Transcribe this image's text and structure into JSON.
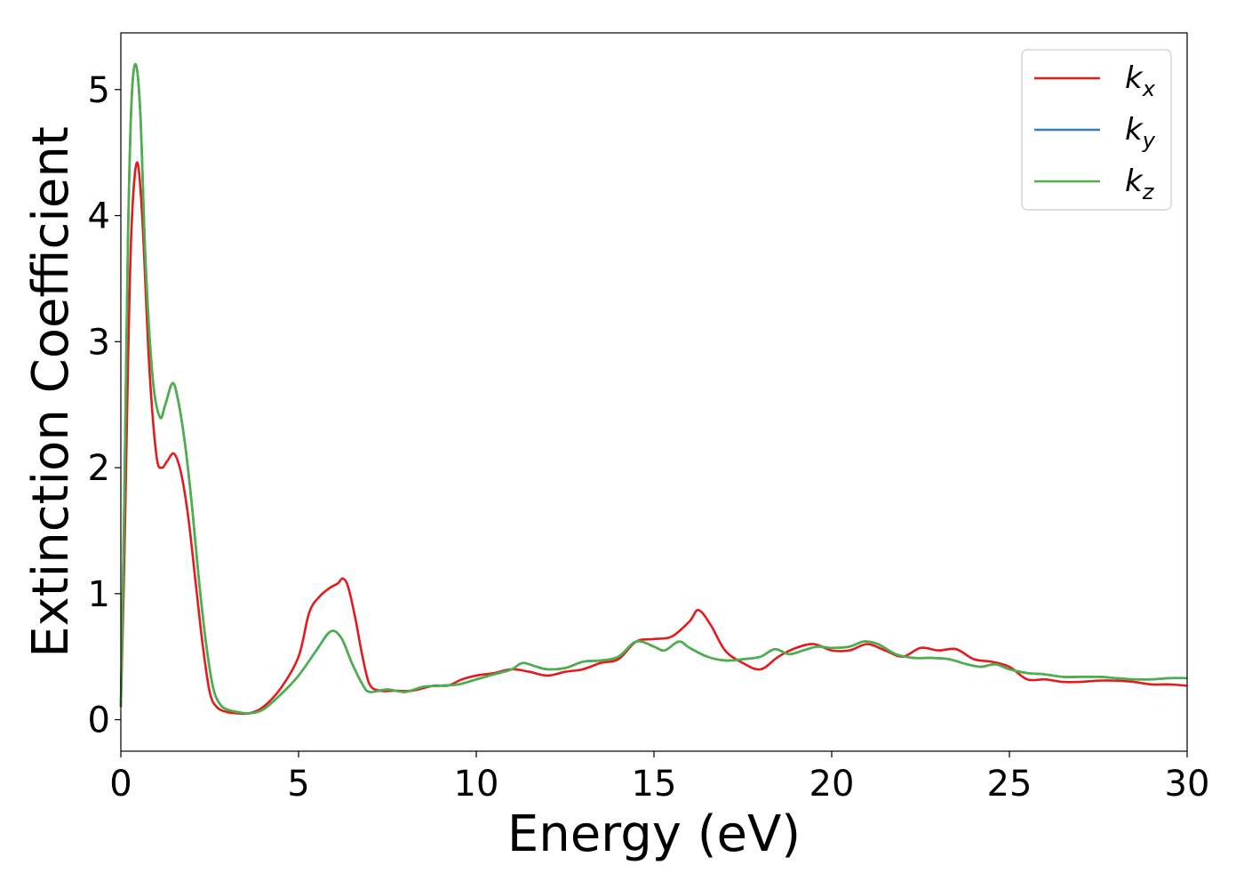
{
  "chart_data": {
    "type": "line",
    "title": "",
    "xlabel": "Energy (eV)",
    "ylabel": "Extinction Coefficient",
    "xlim": [
      0,
      30
    ],
    "ylim": [
      -0.25,
      5.45
    ],
    "xticks": [
      "0",
      "5",
      "10",
      "15",
      "20",
      "25",
      "30"
    ],
    "yticks": [
      "0",
      "1",
      "2",
      "3",
      "4",
      "5"
    ],
    "grid": false,
    "legend_position": "top-right",
    "series": [
      {
        "name": "k_x",
        "label_base": "k",
        "label_sub": "x",
        "color": "#e41a1c",
        "x": [
          0,
          0.1,
          0.2,
          0.3,
          0.45,
          0.6,
          0.8,
          1.0,
          1.15,
          1.3,
          1.5,
          1.7,
          1.9,
          2.1,
          2.3,
          2.5,
          2.7,
          3.0,
          3.3,
          3.6,
          4.0,
          4.5,
          5.0,
          5.3,
          5.6,
          5.9,
          6.1,
          6.25,
          6.4,
          6.6,
          6.8,
          7.0,
          7.3,
          7.7,
          8.2,
          8.8,
          9.2,
          9.6,
          10.0,
          10.5,
          11.0,
          11.5,
          12.0,
          12.5,
          13.0,
          13.5,
          14.0,
          14.5,
          15.0,
          15.5,
          16.0,
          16.25,
          16.6,
          17.0,
          17.5,
          18.0,
          18.5,
          19.0,
          19.5,
          20.0,
          20.5,
          21.0,
          21.5,
          22.0,
          22.5,
          23.0,
          23.5,
          24.0,
          24.5,
          25.0,
          25.5,
          26.0,
          26.5,
          27.0,
          27.5,
          28.0,
          28.5,
          29.0,
          29.5,
          30.0
        ],
        "y": [
          0.1,
          1.3,
          2.8,
          3.9,
          4.42,
          4.0,
          2.8,
          2.1,
          2.0,
          2.05,
          2.11,
          1.95,
          1.6,
          1.1,
          0.6,
          0.22,
          0.1,
          0.06,
          0.05,
          0.05,
          0.1,
          0.25,
          0.5,
          0.85,
          0.98,
          1.05,
          1.08,
          1.12,
          1.05,
          0.8,
          0.5,
          0.28,
          0.23,
          0.23,
          0.23,
          0.27,
          0.27,
          0.32,
          0.35,
          0.37,
          0.4,
          0.38,
          0.35,
          0.38,
          0.4,
          0.45,
          0.48,
          0.62,
          0.64,
          0.66,
          0.78,
          0.87,
          0.75,
          0.55,
          0.45,
          0.4,
          0.5,
          0.57,
          0.6,
          0.55,
          0.55,
          0.6,
          0.55,
          0.5,
          0.57,
          0.55,
          0.56,
          0.48,
          0.46,
          0.42,
          0.32,
          0.32,
          0.3,
          0.3,
          0.31,
          0.31,
          0.3,
          0.28,
          0.28,
          0.27
        ]
      },
      {
        "name": "k_y",
        "label_base": "k",
        "label_sub": "y",
        "color": "#377eb8",
        "x": [
          0,
          0.1,
          0.2,
          0.3,
          0.42,
          0.55,
          0.7,
          0.9,
          1.1,
          1.25,
          1.45,
          1.6,
          1.8,
          2.0,
          2.2,
          2.4,
          2.6,
          2.8,
          3.0,
          3.3,
          3.6,
          4.0,
          4.5,
          5.0,
          5.5,
          5.9,
          6.2,
          6.5,
          6.8,
          7.0,
          7.5,
          8.0,
          8.5,
          9.0,
          9.5,
          10.0,
          10.5,
          11.0,
          11.3,
          11.7,
          12.0,
          12.5,
          13.0,
          13.5,
          14.0,
          14.5,
          15.0,
          15.3,
          15.7,
          16.0,
          16.5,
          17.0,
          17.5,
          18.0,
          18.4,
          18.8,
          19.2,
          19.6,
          20.0,
          20.5,
          20.9,
          21.3,
          21.8,
          22.3,
          22.8,
          23.3,
          23.8,
          24.2,
          24.6,
          25.0,
          25.5,
          26.0,
          26.5,
          27.0,
          27.5,
          28.0,
          28.5,
          29.0,
          29.5,
          30.0
        ],
        "y": [
          0.1,
          1.8,
          3.8,
          4.9,
          5.2,
          4.8,
          3.6,
          2.7,
          2.4,
          2.5,
          2.67,
          2.55,
          2.2,
          1.7,
          1.1,
          0.6,
          0.25,
          0.12,
          0.08,
          0.06,
          0.05,
          0.08,
          0.2,
          0.35,
          0.55,
          0.7,
          0.65,
          0.45,
          0.28,
          0.22,
          0.24,
          0.22,
          0.26,
          0.27,
          0.28,
          0.32,
          0.36,
          0.4,
          0.45,
          0.42,
          0.4,
          0.41,
          0.46,
          0.47,
          0.5,
          0.62,
          0.58,
          0.55,
          0.62,
          0.57,
          0.5,
          0.47,
          0.48,
          0.5,
          0.56,
          0.52,
          0.55,
          0.58,
          0.57,
          0.58,
          0.62,
          0.6,
          0.52,
          0.49,
          0.49,
          0.48,
          0.44,
          0.42,
          0.44,
          0.4,
          0.37,
          0.36,
          0.34,
          0.34,
          0.34,
          0.33,
          0.32,
          0.32,
          0.33,
          0.33
        ]
      },
      {
        "name": "k_z",
        "label_base": "k",
        "label_sub": "z",
        "color": "#4daf4a",
        "x": [
          0,
          0.1,
          0.2,
          0.3,
          0.42,
          0.55,
          0.7,
          0.9,
          1.1,
          1.25,
          1.45,
          1.6,
          1.8,
          2.0,
          2.2,
          2.4,
          2.6,
          2.8,
          3.0,
          3.3,
          3.6,
          4.0,
          4.5,
          5.0,
          5.5,
          5.9,
          6.2,
          6.5,
          6.8,
          7.0,
          7.5,
          8.0,
          8.5,
          9.0,
          9.5,
          10.0,
          10.5,
          11.0,
          11.3,
          11.7,
          12.0,
          12.5,
          13.0,
          13.5,
          14.0,
          14.5,
          15.0,
          15.3,
          15.7,
          16.0,
          16.5,
          17.0,
          17.5,
          18.0,
          18.4,
          18.8,
          19.2,
          19.6,
          20.0,
          20.5,
          20.9,
          21.3,
          21.8,
          22.3,
          22.8,
          23.3,
          23.8,
          24.2,
          24.6,
          25.0,
          25.5,
          26.0,
          26.5,
          27.0,
          27.5,
          28.0,
          28.5,
          29.0,
          29.5,
          30.0
        ],
        "y": [
          0.1,
          1.8,
          3.8,
          4.9,
          5.2,
          4.8,
          3.6,
          2.7,
          2.4,
          2.5,
          2.67,
          2.55,
          2.2,
          1.7,
          1.1,
          0.6,
          0.25,
          0.12,
          0.08,
          0.06,
          0.05,
          0.08,
          0.2,
          0.35,
          0.55,
          0.7,
          0.65,
          0.45,
          0.28,
          0.22,
          0.24,
          0.22,
          0.26,
          0.27,
          0.28,
          0.32,
          0.36,
          0.4,
          0.45,
          0.42,
          0.4,
          0.41,
          0.46,
          0.47,
          0.5,
          0.62,
          0.58,
          0.55,
          0.62,
          0.57,
          0.5,
          0.47,
          0.48,
          0.5,
          0.56,
          0.52,
          0.55,
          0.58,
          0.57,
          0.58,
          0.62,
          0.6,
          0.52,
          0.49,
          0.49,
          0.48,
          0.44,
          0.42,
          0.44,
          0.4,
          0.37,
          0.36,
          0.34,
          0.34,
          0.34,
          0.33,
          0.32,
          0.32,
          0.33,
          0.33
        ]
      }
    ]
  }
}
